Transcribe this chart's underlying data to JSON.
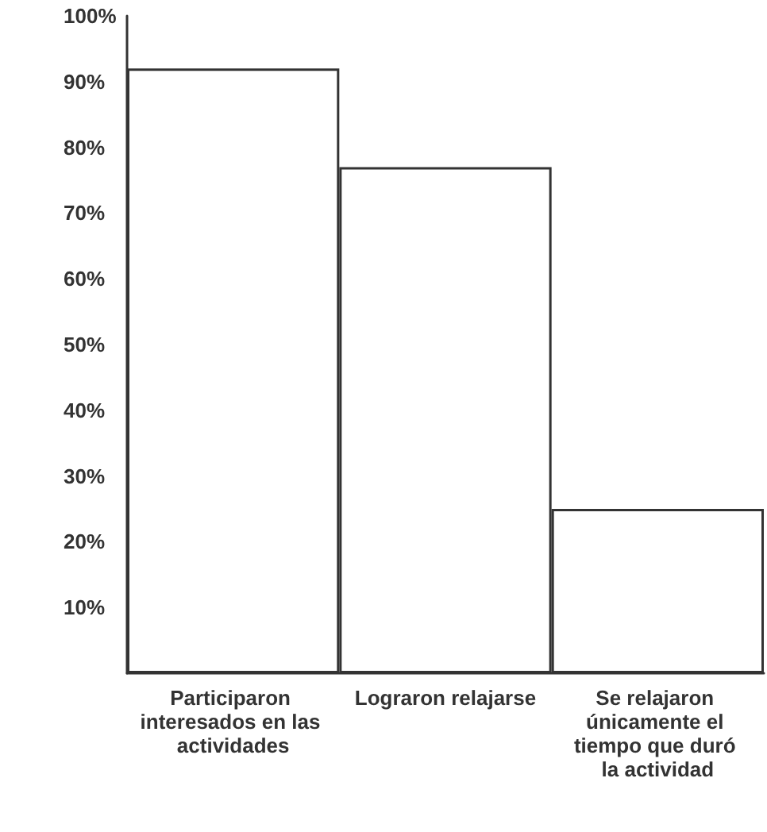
{
  "chart_data": {
    "type": "bar",
    "categories": [
      "Participaron interesados en las actividades",
      "Lograron relajarse",
      "Se relajaron únicamente el tiempo que duró la actividad"
    ],
    "values": [
      92,
      77,
      25
    ],
    "color": "#ffffff",
    "ylim": [
      0,
      100
    ],
    "yticks": [
      {
        "value": 10,
        "label": "10%"
      },
      {
        "value": 20,
        "label": "20%"
      },
      {
        "value": 30,
        "label": "30%"
      },
      {
        "value": 40,
        "label": "40%"
      },
      {
        "value": 50,
        "label": "50%"
      },
      {
        "value": 60,
        "label": "60%"
      },
      {
        "value": 70,
        "label": "70%"
      },
      {
        "value": 80,
        "label": "80%"
      },
      {
        "value": 90,
        "label": "90%"
      },
      {
        "value": 100,
        "label": "100%"
      }
    ],
    "grid": false
  }
}
